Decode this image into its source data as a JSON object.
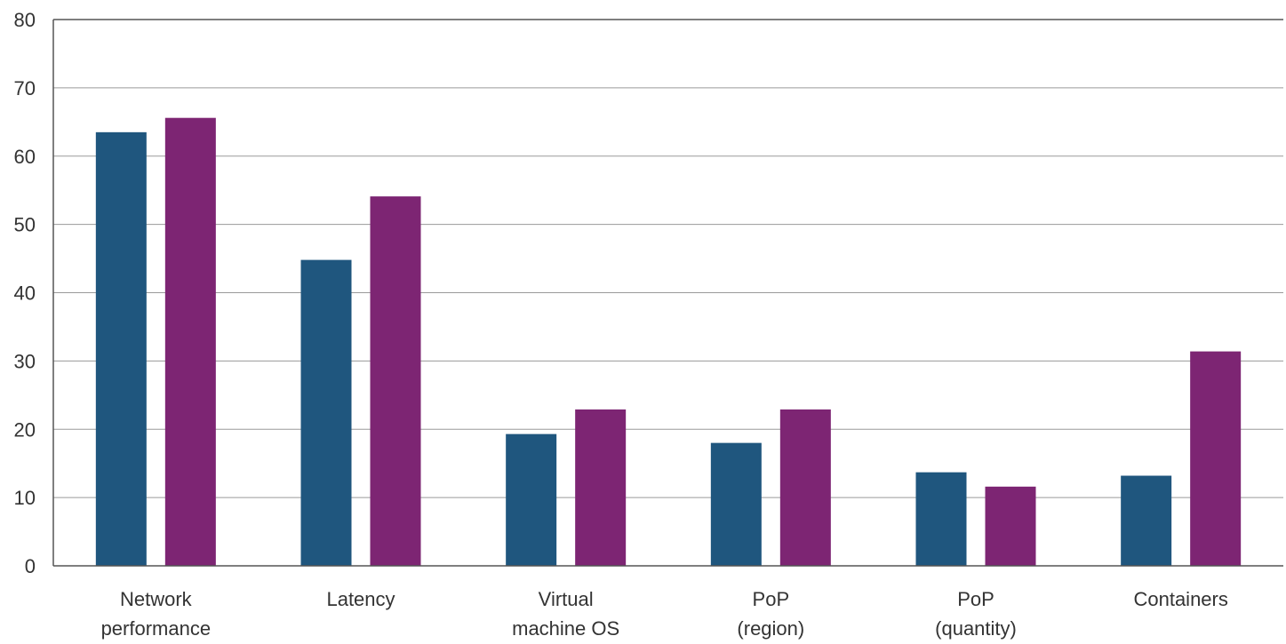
{
  "chart_data": {
    "type": "bar",
    "categories": [
      [
        "Network",
        "performance"
      ],
      [
        "Latency"
      ],
      [
        "Virtual",
        "machine OS"
      ],
      [
        "PoP",
        "(region)"
      ],
      [
        "PoP",
        "(quantity)"
      ],
      [
        "Containers"
      ]
    ],
    "series": [
      {
        "values": [
          63.5,
          44.8,
          19.3,
          18,
          13.7,
          13.2
        ],
        "color": "#1f567e"
      },
      {
        "values": [
          65.6,
          54.1,
          22.9,
          22.9,
          11.6,
          31.4
        ],
        "color": "#7d2573"
      }
    ],
    "ylim": [
      0,
      80
    ],
    "yticks": [
      0,
      10,
      20,
      30,
      40,
      50,
      60,
      70,
      80
    ],
    "grid": true,
    "title": "",
    "xlabel": "",
    "ylabel": ""
  }
}
